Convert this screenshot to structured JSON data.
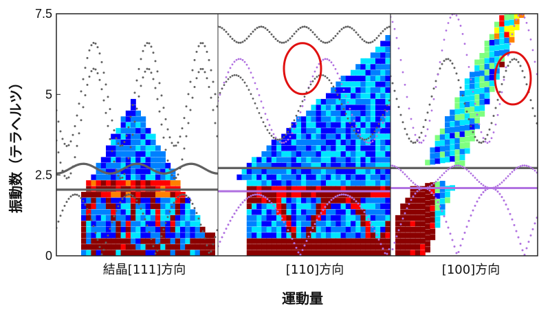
{
  "chart_data": {
    "type": "heatmap",
    "title": "",
    "xlabel": "運動量",
    "ylabel": "振動数（テラヘルツ）",
    "ylim": [
      0,
      7.5
    ],
    "y_ticks": [
      {
        "value": 0,
        "label": "0"
      },
      {
        "value": 2.5,
        "label": "2.5"
      },
      {
        "value": 5,
        "label": "5"
      },
      {
        "value": 7.5,
        "label": "7.5"
      }
    ],
    "panels": [
      {
        "label": "結晶[111]方向",
        "highlight": null,
        "intensity_region": "triangular map peaking near 4.6 THz at center",
        "dispersion_gray": [
          "sinusoidal branches max ~6.6 THz",
          "sinusoidal branches max ~5.8 THz",
          "flat branch ~2.7 THz",
          "arched acoustic branches max ~2.0 THz"
        ]
      },
      {
        "label": "[110]方向",
        "highlight": {
          "center_frequency": 5.8,
          "note": "red circle"
        },
        "intensity_region": "wedge rising to ~6.6 THz at right",
        "dispersion_gray": [
          "flat branch ~2.7 THz",
          "upper branches ~7.1 THz"
        ],
        "dispersion_purple": [
          "flat branch ~2.0 THz",
          "acoustic arch to ~1.9 THz",
          "upper arch ~6.1 THz"
        ]
      },
      {
        "label": "[100]方向",
        "highlight": {
          "center_frequency": 5.5,
          "note": "red circle"
        },
        "intensity_region": "diagonal band rising from 0 to ~7.3 THz",
        "dispersion_gray": [
          "branch max ~6.1 THz",
          "flat branch ~2.7 THz"
        ],
        "dispersion_purple": [
          "flat branch ~2.1 THz",
          "acoustic arches to ~2.1 THz",
          "upper crossing branches ~7.5 THz"
        ]
      }
    ],
    "colors": {
      "colormap": [
        "#00008b",
        "#0000ff",
        "#0080ff",
        "#00e5ff",
        "#7fff7f",
        "#ffff00",
        "#ff8000",
        "#ff0000",
        "#8b0000"
      ],
      "dispersion_gray": "#606060",
      "dispersion_purple": "#b070e0",
      "highlight_circle": "#e01010"
    }
  }
}
